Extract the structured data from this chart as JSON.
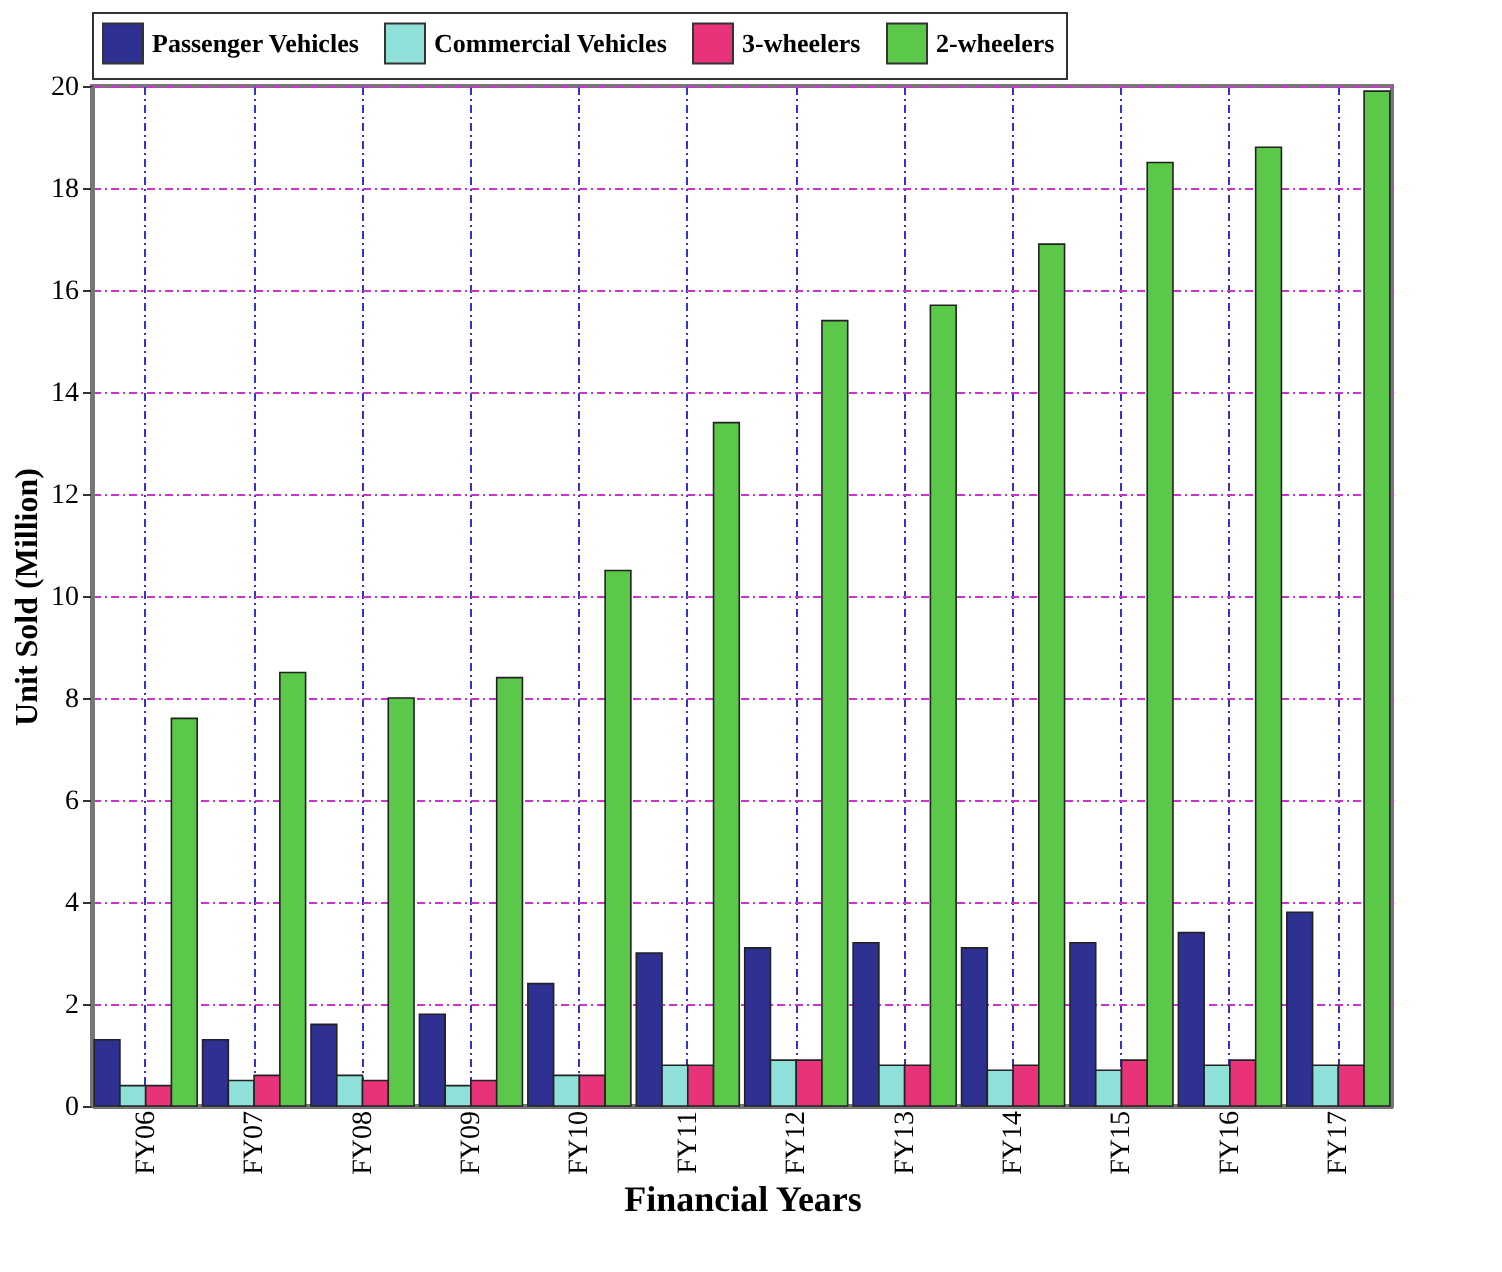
{
  "chart_data": {
    "type": "bar",
    "xlabel": "Financial Years",
    "ylabel": "Unit Sold (Million)",
    "categories": [
      "FY06",
      "FY07",
      "FY08",
      "FY09",
      "FY10",
      "FY11",
      "FY12",
      "FY13",
      "FY14",
      "FY15",
      "FY16",
      "FY17"
    ],
    "series": [
      {
        "name": "Passenger Vehicles",
        "color": "#2e3192",
        "values": [
          1.3,
          1.3,
          1.6,
          1.8,
          2.4,
          3.0,
          3.1,
          3.2,
          3.1,
          3.2,
          3.4,
          3.8
        ]
      },
      {
        "name": "Commercial Vehicles",
        "color": "#8ee0d8",
        "values": [
          0.4,
          0.5,
          0.6,
          0.4,
          0.6,
          0.8,
          0.9,
          0.8,
          0.7,
          0.7,
          0.8,
          0.8
        ]
      },
      {
        "name": "3-wheelers",
        "color": "#e8337a",
        "values": [
          0.4,
          0.6,
          0.5,
          0.5,
          0.6,
          0.8,
          0.9,
          0.8,
          0.8,
          0.9,
          0.9,
          0.8
        ]
      },
      {
        "name": "2-wheelers",
        "color": "#5cc84a",
        "values": [
          7.6,
          8.5,
          8.0,
          8.4,
          10.5,
          13.4,
          15.4,
          15.7,
          16.9,
          18.5,
          18.8,
          19.9
        ]
      }
    ],
    "ylim": [
      0,
      20
    ],
    "yticks": [
      0,
      2,
      4,
      6,
      8,
      10,
      12,
      14,
      16,
      18,
      20
    ],
    "grid": true,
    "legend": "top"
  }
}
